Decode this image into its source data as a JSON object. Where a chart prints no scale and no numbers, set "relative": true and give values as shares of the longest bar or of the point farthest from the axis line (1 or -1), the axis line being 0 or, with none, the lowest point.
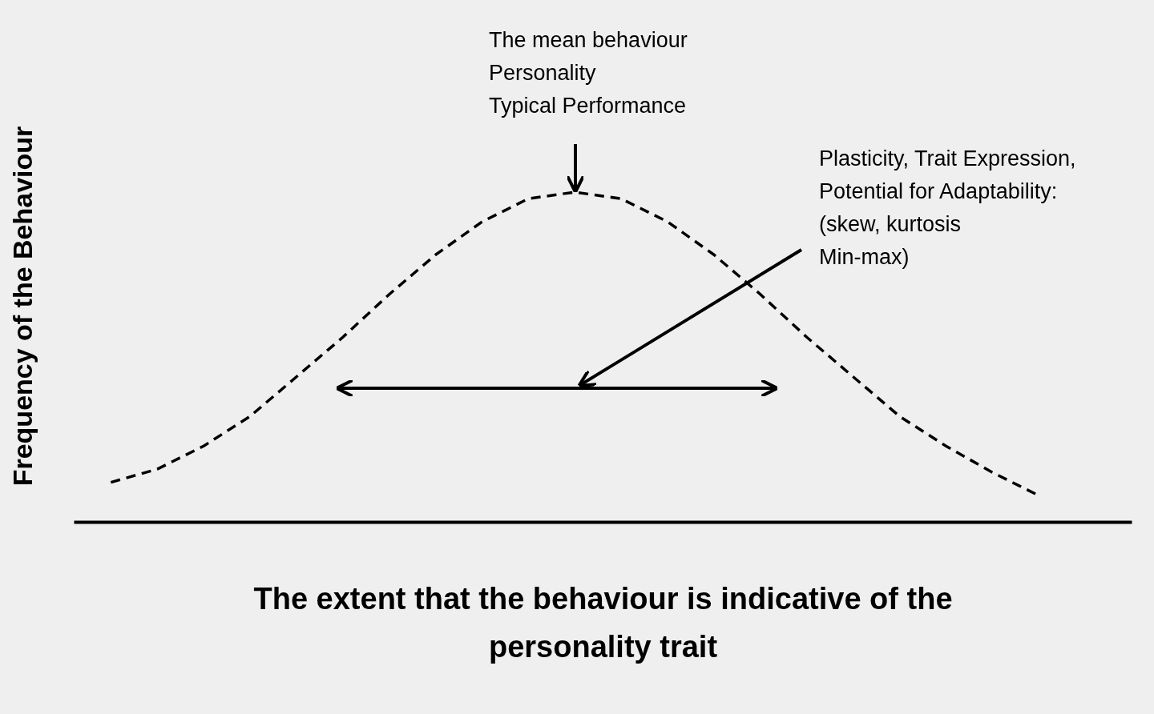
{
  "chart_data": {
    "type": "line",
    "relative": true,
    "xlabel": "The extent that the behaviour is indicative of the personality trait",
    "ylabel": "Frequency of the Behaviour",
    "categories": [
      null,
      null,
      null,
      null,
      null,
      null,
      null,
      null,
      null,
      null,
      null,
      null,
      null,
      null,
      null,
      null,
      null,
      null,
      null,
      null,
      null
    ],
    "series": [
      {
        "color": "#000000",
        "values": [
          0.12,
          0.16,
          0.23,
          0.32,
          0.44,
          0.56,
          0.69,
          0.81,
          0.91,
          0.98,
          1.0,
          0.98,
          0.91,
          0.81,
          0.69,
          0.56,
          0.44,
          0.32,
          0.23,
          0.15,
          0.08
        ]
      }
    ],
    "annotations": [
      "The mean behaviour\nPersonality\nTypical Performance",
      "Plasticity, Trait Expression,\nPotential for Adaptability:\n(skew, kurtosis\nMin-max)"
    ],
    "line_style": "dashed",
    "marker": "none",
    "grid": false
  }
}
